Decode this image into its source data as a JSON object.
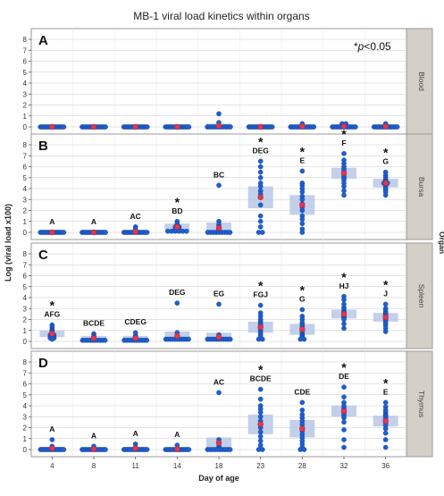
{
  "colors": {
    "dot": "#1f5fd1",
    "mean": "#e8344e",
    "band": "#b9c8e6",
    "facet": "#d9d9d9",
    "strip": "#d4d0c8",
    "grid": "#c8c8c8"
  },
  "chart_data": {
    "type": "scatter",
    "title": "MB-1 viral load  kinetics within organs",
    "annotation": "*p<0.05",
    "annotation_parts": [
      "*",
      "p",
      "<0.05"
    ],
    "xlabel": "Day of age",
    "ylabel": "Log (viral load x100)",
    "legend_title": "Organ",
    "categories": [
      "4",
      "8",
      "11",
      "14",
      "18",
      "23",
      "28",
      "32",
      "36"
    ],
    "yticks": [
      "0",
      "1",
      "2",
      "3",
      "4",
      "5",
      "6",
      "7",
      "8"
    ],
    "ylim": [
      0,
      8.5
    ],
    "grid": "horizontal",
    "panels": [
      {
        "letter": "A",
        "organ": "Blood",
        "groups": [
          {
            "day": "4",
            "points": [
              0,
              0,
              0,
              0,
              0,
              0,
              0,
              0,
              0,
              0,
              0,
              0,
              0,
              0,
              0
            ],
            "mean": 0,
            "band": 0.0,
            "label": "",
            "star": false
          },
          {
            "day": "8",
            "points": [
              0,
              0,
              0,
              0,
              0,
              0,
              0,
              0,
              0,
              0,
              0,
              0,
              0,
              0,
              0
            ],
            "mean": 0,
            "band": 0.0,
            "label": "",
            "star": false
          },
          {
            "day": "11",
            "points": [
              0,
              0,
              0,
              0,
              0,
              0,
              0,
              0,
              0,
              0,
              0,
              0,
              0,
              0,
              0
            ],
            "mean": 0,
            "band": 0.0,
            "label": "",
            "star": false
          },
          {
            "day": "14",
            "points": [
              0,
              0,
              0,
              0,
              0,
              0,
              0,
              0,
              0,
              0,
              0,
              0,
              0,
              0,
              0
            ],
            "mean": 0,
            "band": 0.0,
            "label": "",
            "star": false
          },
          {
            "day": "18",
            "points": [
              1.2,
              0.4,
              0,
              0,
              0,
              0,
              0,
              0,
              0,
              0,
              0,
              0,
              0,
              0,
              0
            ],
            "mean": 0.1,
            "band": 0.2,
            "label": "",
            "star": false
          },
          {
            "day": "23",
            "points": [
              0,
              0,
              0,
              0,
              0,
              0,
              0,
              0,
              0,
              0,
              0,
              0,
              0,
              0,
              0
            ],
            "mean": 0,
            "band": 0.0,
            "label": "",
            "star": false
          },
          {
            "day": "28",
            "points": [
              0.3,
              0,
              0,
              0,
              0,
              0,
              0,
              0,
              0,
              0,
              0,
              0,
              0,
              0,
              0
            ],
            "mean": 0.05,
            "band": 0.1,
            "label": "",
            "star": false
          },
          {
            "day": "32",
            "points": [
              0.3,
              0.3,
              0,
              0,
              0,
              0,
              0,
              0,
              0,
              0,
              0,
              0,
              0,
              0,
              0
            ],
            "mean": 0.05,
            "band": 0.15,
            "label": "",
            "star": false
          },
          {
            "day": "36",
            "points": [
              0.3,
              0,
              0,
              0,
              0,
              0,
              0,
              0,
              0,
              0,
              0,
              0,
              0,
              0,
              0
            ],
            "mean": 0.05,
            "band": 0.15,
            "label": "",
            "star": false
          }
        ]
      },
      {
        "letter": "B",
        "organ": "Bursa",
        "groups": [
          {
            "day": "4",
            "points": [
              0,
              0,
              0,
              0,
              0,
              0,
              0,
              0,
              0,
              0,
              0,
              0,
              0,
              0,
              0
            ],
            "mean": 0,
            "band": 0.0,
            "label": "A",
            "star": false
          },
          {
            "day": "8",
            "points": [
              0,
              0,
              0,
              0,
              0,
              0,
              0,
              0,
              0,
              0,
              0,
              0,
              0,
              0,
              0
            ],
            "mean": 0,
            "band": 0.0,
            "label": "A",
            "star": false
          },
          {
            "day": "11",
            "points": [
              0.5,
              0.3,
              0,
              0,
              0,
              0,
              0,
              0,
              0,
              0,
              0,
              0,
              0,
              0,
              0
            ],
            "mean": 0.05,
            "band": 0.15,
            "label": "AC",
            "star": false
          },
          {
            "day": "14",
            "points": [
              1.0,
              0.8,
              0.6,
              0.5,
              0.5,
              0.4,
              0.3,
              0.3,
              0.2,
              0.1,
              0.1,
              0.1,
              0.1,
              0.1,
              0.1
            ],
            "mean": 0.5,
            "band": 0.3,
            "label": "BD",
            "star": true
          },
          {
            "day": "18",
            "points": [
              4.3,
              1.0,
              0.7,
              0.5,
              0.3,
              0.1,
              0,
              0,
              0,
              0,
              0,
              0,
              0,
              0,
              0
            ],
            "mean": 0.4,
            "band": 0.5,
            "label": "BC",
            "star": false
          },
          {
            "day": "23",
            "points": [
              6.5,
              6.0,
              5.5,
              5.0,
              4.5,
              4.2,
              3.8,
              3.5,
              3.2,
              2.5,
              1.5,
              1.0,
              0.5,
              0,
              0
            ],
            "mean": 3.2,
            "band": 1.0,
            "label": "DEG",
            "star": true
          },
          {
            "day": "28",
            "points": [
              5.6,
              4.5,
              4.3,
              4.0,
              3.7,
              3.3,
              3.0,
              2.6,
              2.3,
              2.0,
              1.5,
              1.2,
              0.8,
              0.3,
              0
            ],
            "mean": 2.5,
            "band": 0.9,
            "label": "E",
            "star": true
          },
          {
            "day": "32",
            "points": [
              7.2,
              6.6,
              6.3,
              6.0,
              5.8,
              5.6,
              5.4,
              5.3,
              5.1,
              5.0,
              4.8,
              4.5,
              4.2,
              3.8,
              3.4
            ],
            "mean": 5.4,
            "band": 0.5,
            "label": "F",
            "star": true
          },
          {
            "day": "36",
            "points": [
              5.5,
              5.2,
              5.0,
              4.8,
              4.7,
              4.6,
              4.5,
              4.5,
              4.4,
              4.3,
              4.2,
              4.0,
              3.9,
              3.7,
              3.4
            ],
            "mean": 4.5,
            "band": 0.4,
            "label": "G",
            "star": true
          }
        ]
      },
      {
        "letter": "C",
        "organ": "Spleen",
        "groups": [
          {
            "day": "4",
            "points": [
              1.5,
              1.3,
              1.1,
              1.0,
              0.9,
              0.8,
              0.7,
              0.6,
              0.6,
              0.5,
              0.4,
              0.4,
              0.3,
              0.3,
              0.2
            ],
            "mean": 0.7,
            "band": 0.3,
            "label": "AFG",
            "star": true
          },
          {
            "day": "8",
            "points": [
              0.7,
              0.5,
              0.4,
              0.3,
              0.2,
              0.1,
              0.1,
              0.1,
              0.1,
              0.1,
              0.1,
              0.1,
              0.1,
              0.1,
              0.1
            ],
            "mean": 0.3,
            "band": 0.2,
            "label": "BCDE",
            "star": false
          },
          {
            "day": "11",
            "points": [
              0.8,
              0.5,
              0.4,
              0.3,
              0.2,
              0.1,
              0.1,
              0.1,
              0.1,
              0.1,
              0.1,
              0.1,
              0.1,
              0.1,
              0.1
            ],
            "mean": 0.3,
            "band": 0.2,
            "label": "CDEG",
            "star": false
          },
          {
            "day": "14",
            "points": [
              3.5,
              0.8,
              0.5,
              0.3,
              0.2,
              0.2,
              0.2,
              0.2,
              0.2,
              0.2,
              0.2,
              0.2,
              0.2,
              0.2,
              0.2
            ],
            "mean": 0.5,
            "band": 0.4,
            "label": "DEG",
            "star": false
          },
          {
            "day": "18",
            "points": [
              3.4,
              0.6,
              0.4,
              0.3,
              0.2,
              0.2,
              0.2,
              0.2,
              0.2,
              0.2,
              0.2,
              0.2,
              0.2,
              0.2,
              0.2
            ],
            "mean": 0.4,
            "band": 0.4,
            "label": "EG",
            "star": false
          },
          {
            "day": "23",
            "points": [
              3.3,
              2.6,
              2.3,
              2.0,
              1.8,
              1.6,
              1.5,
              1.3,
              1.2,
              1.0,
              0.8,
              0.6,
              0.4,
              0.2,
              0.2
            ],
            "mean": 1.3,
            "band": 0.5,
            "label": "FGJ",
            "star": true
          },
          {
            "day": "28",
            "points": [
              2.9,
              2.3,
              2.0,
              1.7,
              1.5,
              1.3,
              1.1,
              1.0,
              0.8,
              0.6,
              0.5,
              0.4,
              0.3,
              0.2,
              0.2
            ],
            "mean": 1.1,
            "band": 0.5,
            "label": "G",
            "star": true
          },
          {
            "day": "32",
            "points": [
              4.1,
              3.8,
              3.4,
              3.1,
              2.9,
              2.7,
              2.6,
              2.5,
              2.4,
              2.3,
              2.2,
              2.1,
              2.0,
              1.6,
              1.2
            ],
            "mean": 2.5,
            "band": 0.4,
            "label": "HJ",
            "star": true
          },
          {
            "day": "36",
            "points": [
              3.4,
              3.0,
              2.8,
              2.6,
              2.5,
              2.4,
              2.3,
              2.2,
              2.1,
              2.0,
              1.9,
              1.7,
              1.5,
              1.2,
              0.9
            ],
            "mean": 2.2,
            "band": 0.4,
            "label": "J",
            "star": true
          }
        ]
      },
      {
        "letter": "D",
        "organ": "Thymus",
        "groups": [
          {
            "day": "4",
            "points": [
              0.9,
              0.3,
              0,
              0,
              0,
              0,
              0,
              0,
              0,
              0,
              0,
              0,
              0,
              0,
              0
            ],
            "mean": 0.1,
            "band": 0.15,
            "label": "A",
            "star": false
          },
          {
            "day": "8",
            "points": [
              0.3,
              0,
              0,
              0,
              0,
              0,
              0,
              0,
              0,
              0,
              0,
              0,
              0,
              0,
              0
            ],
            "mean": 0.05,
            "band": 0.1,
            "label": "A",
            "star": false
          },
          {
            "day": "11",
            "points": [
              0.5,
              0.2,
              0,
              0,
              0,
              0,
              0,
              0,
              0,
              0,
              0,
              0,
              0,
              0,
              0
            ],
            "mean": 0.1,
            "band": 0.15,
            "label": "A",
            "star": false
          },
          {
            "day": "14",
            "points": [
              0.4,
              0,
              0,
              0,
              0,
              0,
              0,
              0,
              0,
              0,
              0,
              0,
              0,
              0,
              0
            ],
            "mean": 0.05,
            "band": 0.1,
            "label": "A",
            "star": false
          },
          {
            "day": "18",
            "points": [
              5.2,
              0.9,
              0.6,
              0.3,
              0.1,
              0,
              0,
              0,
              0,
              0,
              0,
              0,
              0,
              0,
              0
            ],
            "mean": 0.6,
            "band": 0.5,
            "label": "AC",
            "star": false
          },
          {
            "day": "23",
            "points": [
              5.5,
              4.6,
              4.0,
              3.7,
              3.4,
              3.0,
              2.6,
              2.3,
              2.0,
              1.6,
              1.2,
              0.8,
              0.4,
              0,
              0
            ],
            "mean": 2.3,
            "band": 0.9,
            "label": "BCDE",
            "star": true
          },
          {
            "day": "28",
            "points": [
              4.3,
              3.6,
              3.2,
              2.9,
              2.6,
              2.3,
              2.0,
              1.7,
              1.4,
              1.1,
              0.8,
              0.5,
              0.2,
              0,
              0
            ],
            "mean": 1.9,
            "band": 0.8,
            "label": "CDE",
            "star": false
          },
          {
            "day": "32",
            "points": [
              5.7,
              4.8,
              4.3,
              4.0,
              3.8,
              3.6,
              3.5,
              3.4,
              3.3,
              3.1,
              2.9,
              2.5,
              1.8,
              0.9,
              0.2
            ],
            "mean": 3.5,
            "band": 0.5,
            "label": "DE",
            "star": true
          },
          {
            "day": "36",
            "points": [
              4.3,
              3.9,
              3.6,
              3.4,
              3.2,
              3.1,
              3.0,
              2.8,
              2.6,
              2.4,
              2.2,
              1.9,
              1.5,
              0.9,
              0.2
            ],
            "mean": 2.6,
            "band": 0.5,
            "label": "E",
            "star": true
          }
        ]
      }
    ]
  }
}
